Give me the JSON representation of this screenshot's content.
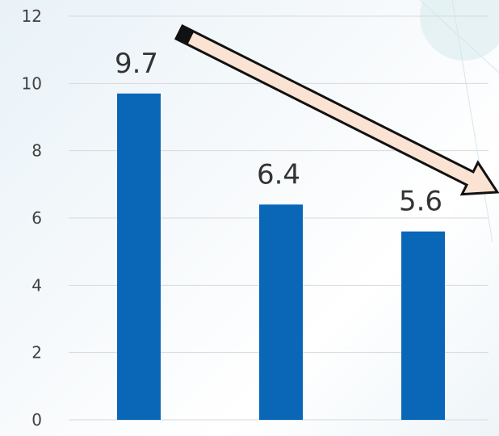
{
  "chart_data": {
    "type": "bar",
    "categories": [
      "",
      "",
      ""
    ],
    "values": [
      9.7,
      6.4,
      5.6
    ],
    "data_labels": [
      "9.7",
      "6.4",
      "5.6"
    ],
    "title": "",
    "xlabel": "",
    "ylabel": "",
    "ylim": [
      0,
      12
    ],
    "yticks": [
      0,
      2,
      4,
      6,
      8,
      10,
      12
    ],
    "ytick_labels": [
      "0",
      "2",
      "4",
      "6",
      "8",
      "10",
      "12"
    ],
    "grid": true,
    "legend": "none",
    "annotation": "downward-trend-arrow",
    "colors": {
      "bar": "#0a67b8",
      "grid": "#d9d9d9",
      "tick_text": "#404040",
      "label_text": "#333333",
      "arrow_fill": "#fbe3d3",
      "arrow_stroke": "#111111"
    }
  }
}
